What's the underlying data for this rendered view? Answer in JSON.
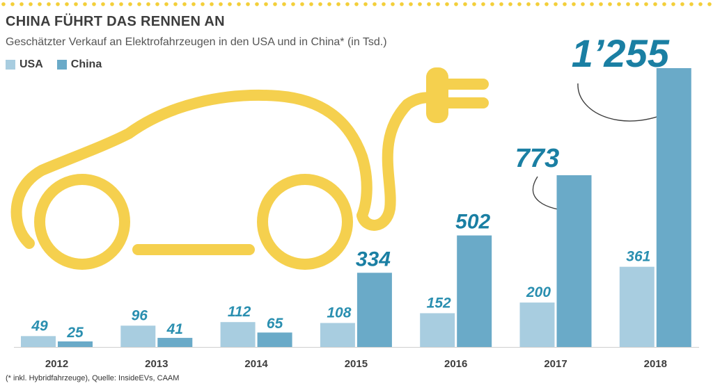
{
  "title": "CHINA FÜHRT DAS RENNEN AN",
  "subtitle": "Geschätzter Verkauf an Elektrofahrzeugen in den USA und in China* (in Tsd.)",
  "source": "(* inkl. Hybridfahrzeuge), Quelle: InsideEVs, CAAM",
  "colors": {
    "usa": "#a8cde0",
    "china": "#6aaac8",
    "label_small": "#2a8fb0",
    "label_big": "#1a7fa3",
    "axis_text": "#3d3d3d",
    "accent_yellow": "#f5d04e",
    "dots": "#f3cf3a"
  },
  "decoration": {
    "car_icon": "car-plug-icon"
  },
  "chart_data": {
    "type": "bar",
    "categories": [
      "2012",
      "2013",
      "2014",
      "2015",
      "2016",
      "2017",
      "2018"
    ],
    "series": [
      {
        "name": "USA",
        "values": [
          49,
          96,
          112,
          108,
          152,
          200,
          361
        ],
        "value_labels": [
          "49",
          "96",
          "112",
          "108",
          "152",
          "200",
          "361"
        ]
      },
      {
        "name": "China",
        "values": [
          25,
          41,
          65,
          334,
          502,
          773,
          1255
        ],
        "value_labels": [
          "25",
          "41",
          "65",
          "334",
          "502",
          "773",
          "1’255"
        ]
      }
    ],
    "ylim": [
      0,
      1255
    ],
    "grid": false,
    "legend": "top-left"
  }
}
